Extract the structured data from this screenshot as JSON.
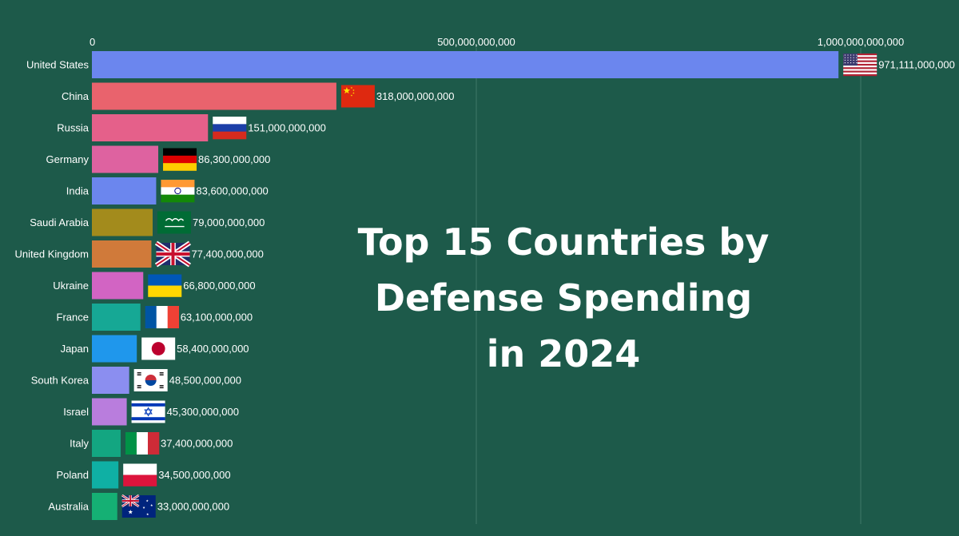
{
  "chart_data": {
    "type": "bar",
    "orientation": "horizontal",
    "title_lines": [
      "Top 15 Countries by",
      "Defense Spending",
      "in 2024"
    ],
    "xlabel": "",
    "ylabel": "",
    "xlim": [
      0,
      1000000000000
    ],
    "x_ticks": [
      {
        "value": 0,
        "label": "0"
      },
      {
        "value": 500000000000,
        "label": "500,000,000,000"
      },
      {
        "value": 1000000000000,
        "label": "1,000,000,000,000"
      }
    ],
    "grid": true,
    "bars": [
      {
        "country": "United States",
        "value": 971111000000,
        "label": "971,111,000,000",
        "color": "#6b86ee",
        "flag": "us-flag"
      },
      {
        "country": "China",
        "value": 318000000000,
        "label": "318,000,000,000",
        "color": "#e9636d",
        "flag": "china-flag"
      },
      {
        "country": "Russia",
        "value": 151000000000,
        "label": "151,000,000,000",
        "color": "#e5608a",
        "flag": "russia-flag"
      },
      {
        "country": "Germany",
        "value": 86300000000,
        "label": "86,300,000,000",
        "color": "#de62a0",
        "flag": "germany-flag"
      },
      {
        "country": "India",
        "value": 83600000000,
        "label": "83,600,000,000",
        "color": "#6b86ee",
        "flag": "india-flag"
      },
      {
        "country": "Saudi Arabia",
        "value": 79000000000,
        "label": "79,000,000,000",
        "color": "#a38b1c",
        "flag": "saudi-arabia-flag"
      },
      {
        "country": "United Kingdom",
        "value": 77400000000,
        "label": "77,400,000,000",
        "color": "#d07a3a",
        "flag": "uk-flag"
      },
      {
        "country": "Ukraine",
        "value": 66800000000,
        "label": "66,800,000,000",
        "color": "#d264c3",
        "flag": "ukraine-flag"
      },
      {
        "country": "France",
        "value": 63100000000,
        "label": "63,100,000,000",
        "color": "#16a895",
        "flag": "france-flag"
      },
      {
        "country": "Japan",
        "value": 58400000000,
        "label": "58,400,000,000",
        "color": "#1f97ec",
        "flag": "japan-flag"
      },
      {
        "country": "South Korea",
        "value": 48500000000,
        "label": "48,500,000,000",
        "color": "#8b8ef0",
        "flag": "south-korea-flag"
      },
      {
        "country": "Israel",
        "value": 45300000000,
        "label": "45,300,000,000",
        "color": "#b97ddd",
        "flag": "israel-flag"
      },
      {
        "country": "Italy",
        "value": 37400000000,
        "label": "37,400,000,000",
        "color": "#13a681",
        "flag": "italy-flag"
      },
      {
        "country": "Poland",
        "value": 34500000000,
        "label": "34,500,000,000",
        "color": "#0fb0a4",
        "flag": "poland-flag"
      },
      {
        "country": "Australia",
        "value": 33000000000,
        "label": "33,000,000,000",
        "color": "#15b074",
        "flag": "australia-flag"
      }
    ]
  }
}
